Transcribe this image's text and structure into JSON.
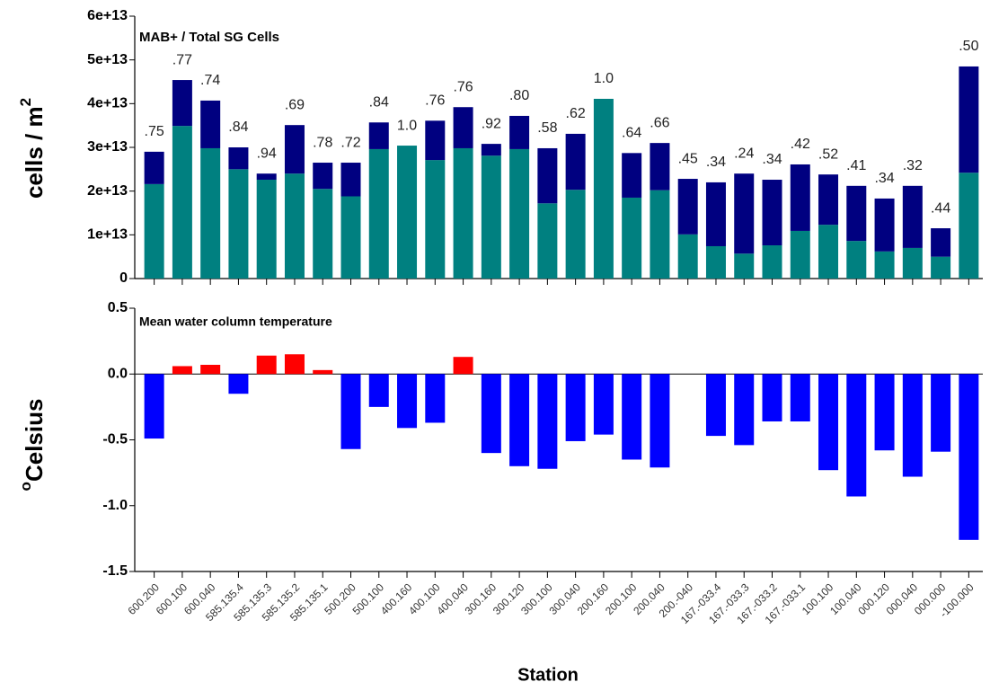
{
  "chart_data": [
    {
      "type": "bar",
      "stacked": true,
      "title": "MAB+ / Total SG Cells",
      "y_label": "cells / m",
      "y_label_sup": "2",
      "series": [
        {
          "color": "#008080",
          "values": [
            21600000000000.0,
            34900000000000.0,
            29800000000000.0,
            25000000000000.0,
            22600000000000.0,
            24000000000000.0,
            20500000000000.0,
            18800000000000.0,
            29600000000000.0,
            30400000000000.0,
            27100000000000.0,
            29800000000000.0,
            28100000000000.0,
            29600000000000.0,
            17200000000000.0,
            20300000000000.0,
            41100000000000.0,
            18500000000000.0,
            20200000000000.0,
            10100000000000.0,
            7400000000000.0,
            5700000000000.0,
            7600000000000.0,
            10900000000000.0,
            12300000000000.0,
            8600000000000.0,
            6200000000000.0,
            7000000000000.0,
            5000000000000.0,
            24200000000000.0
          ]
        },
        {
          "color": "#000080",
          "values": [
            7400000000000.0,
            10500000000000.0,
            10900000000000.0,
            5000000000000.0,
            1400000000000.0,
            11100000000000.0,
            6000000000000.0,
            7700000000000.0,
            6100000000000.0,
            0,
            9000000000000.0,
            9400000000000.0,
            2700000000000.0,
            7600000000000.0,
            12600000000000.0,
            12800000000000.0,
            0,
            10200000000000.0,
            10800000000000.0,
            12700000000000.0,
            14600000000000.0,
            18300000000000.0,
            15000000000000.0,
            15200000000000.0,
            11500000000000.0,
            12600000000000.0,
            12100000000000.0,
            14200000000000.0,
            6500000000000.0,
            24300000000000.0
          ]
        }
      ],
      "bar_labels": [
        ".75",
        ".77",
        ".74",
        ".84",
        ".94",
        ".69",
        ".78",
        ".72",
        ".84",
        "1.0",
        ".76",
        ".76",
        ".92",
        ".80",
        ".58",
        ".62",
        "1.0",
        ".64",
        ".66",
        ".45",
        ".34",
        ".24",
        ".34",
        ".42",
        ".52",
        ".41",
        ".34",
        ".32",
        ".44",
        ".50"
      ],
      "ylim": [
        0,
        60000000000000.0
      ],
      "yticks": [
        0,
        {
          "value": 10000000000000.0,
          "label": "1e+13"
        },
        {
          "value": 20000000000000.0,
          "label": "2e+13"
        },
        {
          "value": 30000000000000.0,
          "label": "3e+13"
        },
        {
          "value": 40000000000000.0,
          "label": "4e+13"
        },
        {
          "value": 50000000000000.0,
          "label": "5e+13"
        },
        {
          "value": 60000000000000.0,
          "label": "6e+13"
        }
      ]
    },
    {
      "type": "bar",
      "title": "Mean water column temperature",
      "y_label": "Celsius",
      "y_label_sup": "o",
      "x_label": "Station",
      "categories": [
        "600.200",
        "600.100",
        "600.040",
        "585.135.4",
        "585.135.3",
        "585.135.2",
        "585.135.1",
        "500.200",
        "500.100",
        "400.160",
        "400.100",
        "400.040",
        "300.160",
        "300.120",
        "300.100",
        "300.040",
        "200.160",
        "200.100",
        "200.040",
        "200.-040",
        "167.-033.4",
        "167.-033.3",
        "167.-033.2",
        "167.-033.1",
        "100.100",
        "100.040",
        "000.120",
        "000.040",
        "000.000",
        "-100.000"
      ],
      "values": [
        -0.49,
        0.06,
        0.07,
        -0.15,
        0.14,
        0.15,
        0.03,
        -0.57,
        -0.25,
        -0.41,
        -0.37,
        0.13,
        -0.6,
        -0.7,
        -0.72,
        -0.51,
        -0.46,
        -0.65,
        -0.71,
        null,
        -0.47,
        -0.54,
        -0.36,
        -0.36,
        -0.73,
        -0.93,
        -0.58,
        -0.78,
        -0.59,
        -1.26
      ],
      "positive_color": "#ff0000",
      "negative_color": "#0000ff",
      "ylim": [
        -1.5,
        0.5
      ],
      "yticks": [
        -1.5,
        {
          "value": -1,
          "label": "-1.0"
        },
        -0.5,
        {
          "value": 0,
          "label": "0.0"
        },
        0.5
      ]
    }
  ]
}
